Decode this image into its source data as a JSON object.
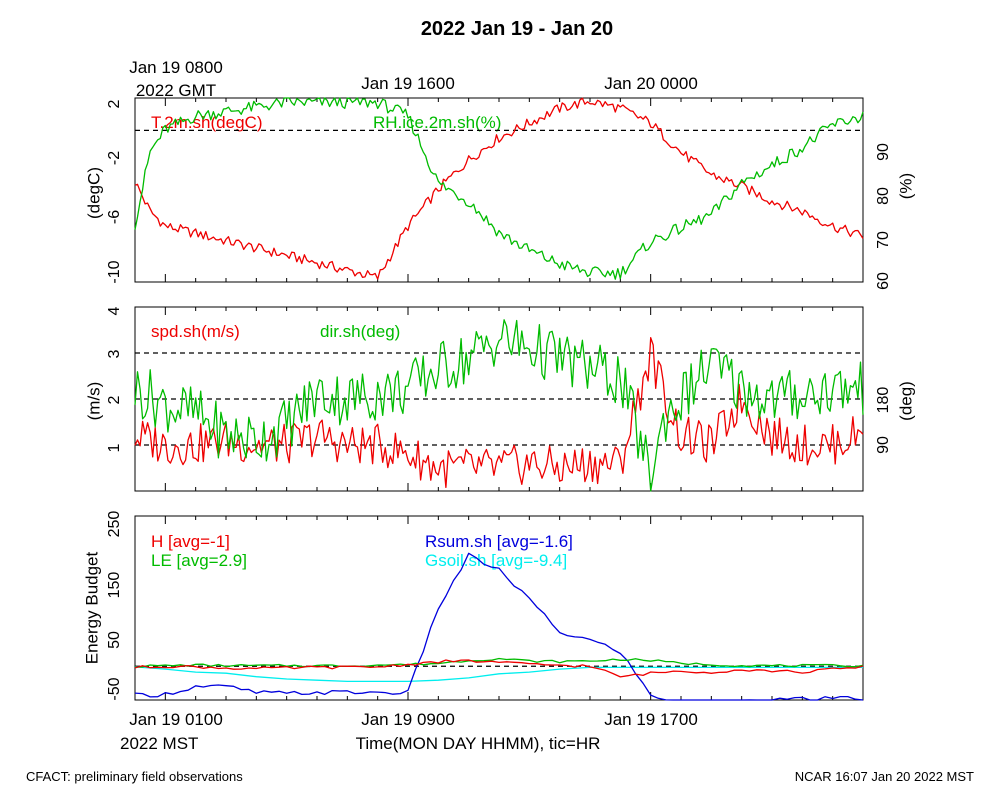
{
  "title": "2022 Jan 19 - Jan 20",
  "top_axis": {
    "gmt_tick_1_line1": "Jan 19 0800",
    "gmt_tick_1_line2": "2022 GMT",
    "gmt_tick_2": "Jan 19 1600",
    "gmt_tick_3": "Jan 20 0000"
  },
  "bottom_axis": {
    "tick_1": "Jan 19 0100",
    "tick_2": "Jan 19 0900",
    "tick_3": "Jan 19 1700",
    "year_label": "2022 MST",
    "xlabel": "Time(MON DAY HHMM), tic=HR"
  },
  "footer": {
    "left": "CFACT: preliminary field observations",
    "right": "NCAR 16:07 Jan 20 2022 MST"
  },
  "colors": {
    "red": "#ee0000",
    "green": "#00bb00",
    "blue": "#0000dd",
    "cyan": "#00eeee",
    "black": "#000000"
  },
  "chart_data": [
    {
      "type": "line",
      "panel": "temperature-humidity",
      "xlim": [
        0,
        24
      ],
      "ylim_left": [
        -10.3,
        2.2
      ],
      "ylim_right": [
        59,
        100
      ],
      "left_ticks": [
        "2",
        "-2",
        "-6",
        "-10"
      ],
      "right_ticks": [
        "90",
        "80",
        "70",
        "60"
      ],
      "ylabel_left": "(degC)",
      "ylabel_right": "(%)",
      "reference_line": 0,
      "legend_labels": {
        "T": "T.2m.sh(degC)",
        "RH": "RH.ice.2m.sh(%)"
      },
      "x": [
        0,
        0.5,
        1,
        2,
        3,
        4,
        5,
        6,
        7,
        8,
        9,
        10,
        11,
        12,
        13,
        14,
        15,
        16,
        17,
        18,
        19,
        20,
        21,
        22,
        23,
        24
      ],
      "series": [
        {
          "name": "T.2m.sh(degC)",
          "axis": "left",
          "color": "red",
          "values": [
            -3.5,
            -5.5,
            -6.5,
            -7.0,
            -7.5,
            -8.0,
            -8.5,
            -9.0,
            -9.5,
            -10.0,
            -6.5,
            -4.0,
            -2.0,
            -0.5,
            0.5,
            1.5,
            2.0,
            1.5,
            0.5,
            -1.5,
            -3.0,
            -3.8,
            -4.8,
            -5.5,
            -6.5,
            -7.2
          ]
        },
        {
          "name": "RH.ice.2m.sh(%)",
          "axis": "right",
          "color": "green",
          "values": [
            72,
            88,
            93,
            96,
            97,
            98,
            99,
            99,
            99,
            99,
            96,
            81,
            77,
            70,
            66,
            63,
            61,
            61,
            68,
            71,
            74,
            81,
            85,
            89,
            94,
            96
          ]
        }
      ],
      "grid": false
    },
    {
      "type": "line",
      "panel": "wind",
      "xlim": [
        0,
        24
      ],
      "ylim_left": [
        0,
        4
      ],
      "ylim_right": [
        0,
        360
      ],
      "left_ticks": [
        "4",
        "3",
        "2",
        "1"
      ],
      "right_ticks": [
        "180",
        "90"
      ],
      "ylabel_left": "(m/s)",
      "ylabel_right": "(deg)",
      "reference_lines": [
        1,
        2,
        3
      ],
      "legend_labels": {
        "spd": "spd.sh(m/s)",
        "dir": "dir.sh(deg)"
      },
      "x": [
        0,
        1,
        2,
        3,
        4,
        5,
        6,
        7,
        8,
        9,
        10,
        11,
        12,
        13,
        14,
        15,
        16,
        17,
        17.5,
        18,
        19,
        20,
        21,
        22,
        23,
        24
      ],
      "series": [
        {
          "name": "spd.sh(m/s)",
          "axis": "left",
          "color": "red",
          "values": [
            1.2,
            1.0,
            1.0,
            1.1,
            1.0,
            1.0,
            1.2,
            1.0,
            1.0,
            0.8,
            0.5,
            0.5,
            0.5,
            0.6,
            0.5,
            0.6,
            0.6,
            3.0,
            2.0,
            1.2,
            1.0,
            2.0,
            1.2,
            1.0,
            1.0,
            1.3
          ]
        },
        {
          "name": "dir.sh(deg)",
          "axis": "right",
          "color": "green",
          "values": [
            200,
            170,
            150,
            110,
            100,
            130,
            190,
            180,
            190,
            200,
            240,
            260,
            300,
            280,
            260,
            240,
            220,
            30,
            150,
            180,
            250,
            200,
            180,
            190,
            200,
            200
          ]
        }
      ],
      "grid": false
    },
    {
      "type": "line",
      "panel": "energy-budget",
      "xlim": [
        0,
        24
      ],
      "ylim": [
        -58,
        258
      ],
      "left_ticks": [
        "250",
        "150",
        "50",
        "-50"
      ],
      "ylabel": "Energy Budget",
      "reference_line": 0,
      "legend_labels": {
        "H": "H [avg=-1]",
        "LE": "LE [avg=2.9]",
        "Rsum": "Rsum.sh [avg=-1.6]",
        "Gsoil": "Gsoil.sh [avg=-9.4]"
      },
      "x": [
        0,
        1,
        2,
        3,
        4,
        5,
        6,
        7,
        8,
        9,
        10,
        11,
        12,
        13,
        14,
        15,
        16,
        17,
        18,
        19,
        20,
        21,
        22,
        23,
        24
      ],
      "series": [
        {
          "name": "H [avg=-1]",
          "color": "red",
          "values": [
            -2,
            0,
            -1,
            -3,
            -4,
            -3,
            -2,
            -2,
            -1,
            3,
            8,
            9,
            7,
            3,
            2,
            0,
            -18,
            -12,
            -8,
            -10,
            -6,
            -8,
            -10,
            -5,
            -2
          ]
        },
        {
          "name": "LE [avg=2.9]",
          "color": "green",
          "values": [
            0,
            1,
            2,
            1,
            1,
            1,
            1,
            1,
            2,
            3,
            5,
            10,
            13,
            9,
            8,
            9,
            12,
            10,
            5,
            3,
            1,
            1,
            1,
            1,
            1
          ]
        },
        {
          "name": "Rsum.sh [avg=-1.6]",
          "color": "blue",
          "values": [
            -50,
            -48,
            -35,
            -35,
            -45,
            -47,
            -45,
            -45,
            -45,
            -45,
            100,
            190,
            165,
            115,
            58,
            45,
            25,
            -50,
            -62,
            -62,
            -60,
            -58,
            -57,
            -56,
            -55
          ]
        },
        {
          "name": "Gsoil.sh [avg=-9.4]",
          "color": "cyan",
          "values": [
            -1,
            -5,
            -10,
            -12,
            -18,
            -22,
            -24,
            -26,
            -26,
            -26,
            -24,
            -20,
            -13,
            -10,
            -5,
            -2,
            -2,
            -2,
            -2,
            -2,
            -2,
            -2,
            -2,
            -2,
            -2
          ]
        }
      ],
      "grid": false
    }
  ]
}
